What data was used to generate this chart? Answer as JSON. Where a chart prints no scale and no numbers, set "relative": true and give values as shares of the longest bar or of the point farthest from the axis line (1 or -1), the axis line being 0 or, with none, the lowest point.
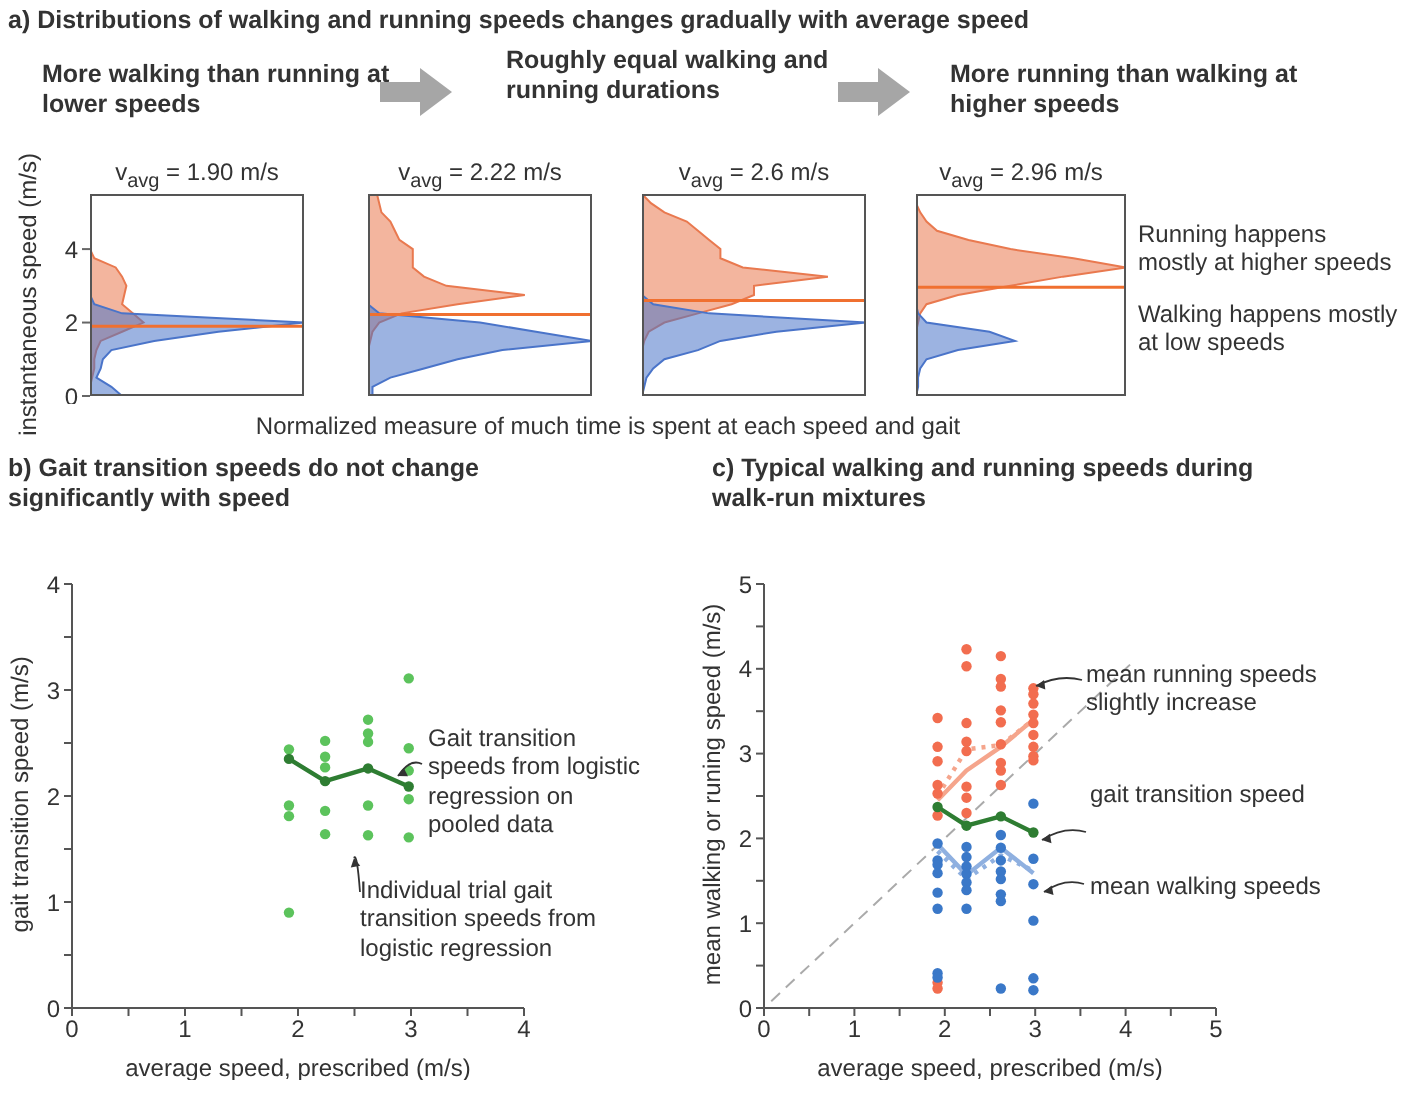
{
  "chart_data": [
    {
      "type": "area",
      "orientation": "horizontal",
      "relative": true,
      "title": "a) Distributions of walking and running speeds changes gradually with average speed",
      "subtitle": "v$_{avg}$ = 1.90 m/s",
      "xlabel": "Normalized measure of much time is spent at each speed and gait",
      "ylabel": "instantaneous speed (m/s)",
      "tick_labels": "y",
      "annotations": [
        "More walking than running at lower speeds",
        "Roughly equal walking and running durations",
        "More running than walking at higher speeds"
      ],
      "ylim": [
        0,
        5.5
      ],
      "yticks": [
        0,
        2,
        4
      ],
      "x": [
        0,
        0.25,
        0.5,
        0.75,
        1,
        1.25,
        1.5,
        1.75,
        2,
        2.25,
        2.5,
        2.75,
        3,
        3.25,
        3.5,
        3.75,
        4,
        4.25,
        4.5,
        4.75,
        5,
        5.25,
        5.5
      ],
      "series": [
        {
          "color": "#e9794f",
          "values": [
            0,
            0,
            0.01,
            0.02,
            0.02,
            0.03,
            0.05,
            0.15,
            0.25,
            0.2,
            0.15,
            0.16,
            0.17,
            0.15,
            0.12,
            0.02,
            0,
            0,
            0,
            0,
            0,
            0,
            0
          ]
        },
        {
          "color": "#4a74c9",
          "values": [
            0.15,
            0.1,
            0.03,
            0.05,
            0.06,
            0.1,
            0.3,
            0.6,
            1,
            0.15,
            0.02,
            0,
            0,
            0,
            0,
            0,
            0,
            0,
            0,
            0,
            0,
            0,
            0
          ]
        }
      ],
      "ref_lines": [
        {
          "axis": "y",
          "value": 1.9,
          "color": "#f07030"
        }
      ]
    },
    {
      "type": "area",
      "orientation": "horizontal",
      "relative": true,
      "subtitle": "v$_{avg}$ = 2.22 m/s",
      "tick_labels": false,
      "ylim": [
        0,
        5.5
      ],
      "yticks": [
        0,
        2,
        4
      ],
      "x": [
        0,
        0.25,
        0.5,
        0.75,
        1,
        1.25,
        1.5,
        1.75,
        2,
        2.25,
        2.5,
        2.75,
        3,
        3.25,
        3.5,
        3.75,
        4,
        4.25,
        4.5,
        4.75,
        5,
        5.25,
        5.5
      ],
      "series": [
        {
          "color": "#e9794f",
          "values": [
            0,
            0,
            0,
            0,
            0,
            0,
            0.01,
            0.02,
            0.05,
            0.15,
            0.4,
            0.7,
            0.35,
            0.25,
            0.2,
            0.2,
            0.2,
            0.14,
            0.12,
            0.1,
            0.06,
            0.05,
            0.04
          ]
        },
        {
          "color": "#4a74c9",
          "values": [
            0.02,
            0.02,
            0.1,
            0.25,
            0.4,
            0.6,
            1,
            0.75,
            0.5,
            0.05,
            0,
            0,
            0,
            0,
            0,
            0,
            0,
            0,
            0,
            0,
            0,
            0,
            0
          ]
        }
      ],
      "ref_lines": [
        {
          "axis": "y",
          "value": 2.22,
          "color": "#f07030"
        }
      ]
    },
    {
      "type": "area",
      "orientation": "horizontal",
      "relative": true,
      "subtitle": "v$_{avg}$ = 2.6 m/s",
      "tick_labels": false,
      "ylim": [
        0,
        5.5
      ],
      "yticks": [
        0,
        2,
        4
      ],
      "x": [
        0,
        0.25,
        0.5,
        0.75,
        1,
        1.25,
        1.5,
        1.75,
        2,
        2.25,
        2.5,
        2.75,
        3,
        3.25,
        3.5,
        3.75,
        4,
        4.25,
        4.5,
        4.75,
        5,
        5.25,
        5.5
      ],
      "series": [
        {
          "color": "#e9794f",
          "values": [
            0,
            0,
            0,
            0,
            0,
            0,
            0.01,
            0.03,
            0.1,
            0.25,
            0.4,
            0.5,
            0.5,
            0.83,
            0.45,
            0.35,
            0.35,
            0.3,
            0.25,
            0.2,
            0.1,
            0.04,
            0
          ]
        },
        {
          "color": "#4a74c9",
          "values": [
            0,
            0.01,
            0.02,
            0.05,
            0.1,
            0.25,
            0.35,
            0.6,
            1,
            0.3,
            0.05,
            0,
            0,
            0,
            0,
            0,
            0,
            0,
            0,
            0,
            0,
            0,
            0
          ]
        }
      ],
      "ref_lines": [
        {
          "axis": "y",
          "value": 2.6,
          "color": "#f07030"
        }
      ]
    },
    {
      "type": "area",
      "orientation": "horizontal",
      "relative": true,
      "subtitle": "v$_{avg}$ = 2.96 m/s",
      "tick_labels": false,
      "annotations": [
        "Running happens mostly at higher speeds",
        "Walking happens mostly at low speeds"
      ],
      "ylim": [
        0,
        5.5
      ],
      "yticks": [
        0,
        2,
        4
      ],
      "x": [
        0,
        0.25,
        0.5,
        0.75,
        1,
        1.25,
        1.5,
        1.75,
        2,
        2.25,
        2.5,
        2.75,
        3,
        3.25,
        3.5,
        3.75,
        4,
        4.25,
        4.5,
        4.75,
        5,
        5.25,
        5.5
      ],
      "series": [
        {
          "color": "#e9794f",
          "values": [
            0,
            0,
            0,
            0,
            0,
            0,
            0,
            0,
            0.01,
            0.02,
            0.05,
            0.2,
            0.45,
            0.7,
            1,
            0.75,
            0.45,
            0.25,
            0.1,
            0.05,
            0.02,
            0,
            0
          ]
        },
        {
          "color": "#4a74c9",
          "values": [
            0,
            0.01,
            0.01,
            0.02,
            0.05,
            0.2,
            0.47,
            0.35,
            0.05,
            0.01,
            0,
            0,
            0,
            0,
            0,
            0,
            0,
            0,
            0,
            0,
            0,
            0,
            0
          ]
        }
      ],
      "ref_lines": [
        {
          "axis": "y",
          "value": 2.96,
          "color": "#f07030"
        }
      ]
    },
    {
      "type": "scatter",
      "title": "b) Gait transition speeds do not change significantly with speed",
      "xlabel": "average speed, prescribed (m/s)",
      "ylabel": "gait transition speed (m/s)",
      "marker": "circle",
      "annotations": [
        "Gait transition speeds from logistic regression on pooled data",
        "Individual trial gait transition speeds from logistic regression"
      ],
      "xlim": [
        0,
        4
      ],
      "xticks": [
        0,
        {
          "value": 0.5,
          "label": null
        },
        1,
        {
          "value": 1.5,
          "label": null
        },
        2,
        {
          "value": 2.5,
          "label": null
        },
        3,
        {
          "value": 3.5,
          "label": null
        },
        4
      ],
      "ylim": [
        0,
        4
      ],
      "yticks": [
        0,
        {
          "value": 0.5,
          "label": null
        },
        1,
        {
          "value": 1.5,
          "label": null
        },
        2,
        {
          "value": 2.5,
          "label": null
        },
        3,
        {
          "value": 3.5,
          "label": null
        },
        4
      ],
      "series": [
        {
          "type": "scatter",
          "color": "#5cc35c",
          "x": [
            1.92,
            1.92,
            1.92,
            1.92,
            2.24,
            2.24,
            2.24,
            2.24,
            2.24,
            2.62,
            2.62,
            2.62,
            2.62,
            2.62,
            2.98,
            2.98,
            2.98,
            2.98,
            2.98
          ],
          "values": [
            2.44,
            1.91,
            1.81,
            0.9,
            2.52,
            2.37,
            2.27,
            1.86,
            1.64,
            2.72,
            2.59,
            2.51,
            1.91,
            1.63,
            3.11,
            2.45,
            2.24,
            1.97,
            1.61
          ]
        },
        {
          "type": "line",
          "color": "#2e7d32",
          "x": [
            1.92,
            2.24,
            2.62,
            2.98
          ],
          "values": [
            2.35,
            2.14,
            2.26,
            2.09
          ]
        }
      ]
    },
    {
      "type": "scatter",
      "title": "c) Typical walking and running speeds during walk-run mixtures",
      "xlabel": "average speed, prescribed (m/s)",
      "ylabel": "mean walking or runing speed (m/s)",
      "marker": "circle",
      "annotations": [
        "mean running speeds slightly increase",
        "gait transition speed",
        "mean walking speeds"
      ],
      "xlim": [
        0,
        5
      ],
      "xticks": [
        0,
        {
          "value": 0.5,
          "label": null
        },
        1,
        {
          "value": 1.5,
          "label": null
        },
        2,
        {
          "value": 2.5,
          "label": null
        },
        3,
        {
          "value": 3.5,
          "label": null
        },
        4,
        {
          "value": 4.5,
          "label": null
        },
        5
      ],
      "ylim": [
        0,
        5
      ],
      "yticks": [
        0,
        {
          "value": 0.5,
          "label": null
        },
        1,
        {
          "value": 1.5,
          "label": null
        },
        2,
        {
          "value": 2.5,
          "label": null
        },
        3,
        {
          "value": 3.5,
          "label": null
        },
        4,
        {
          "value": 4.5,
          "label": null
        },
        5
      ],
      "series": [
        {
          "type": "line",
          "color": "#aaaaaa",
          "line_style": "dashed",
          "marker": "none",
          "x": [
            0.08,
            4.1
          ],
          "values": [
            0.08,
            4.1
          ]
        },
        {
          "type": "scatter",
          "color": "#f26d4f",
          "x": [
            1.92,
            1.92,
            1.92,
            1.92,
            1.92,
            1.92,
            1.92,
            1.92,
            2.24,
            2.24,
            2.24,
            2.24,
            2.24,
            2.24,
            2.24,
            2.24,
            2.62,
            2.62,
            2.62,
            2.62,
            2.62,
            2.62,
            2.62,
            2.62,
            2.62,
            2.98,
            2.98,
            2.98,
            2.98,
            2.98,
            2.98,
            2.98,
            2.98,
            2.98
          ],
          "values": [
            3.42,
            3.08,
            2.91,
            2.63,
            2.53,
            2.27,
            0.3,
            0.23,
            4.23,
            4.03,
            3.36,
            3.14,
            3.03,
            2.61,
            2.48,
            2.3,
            4.15,
            3.88,
            3.79,
            3.51,
            3.37,
            3.11,
            2.89,
            2.8,
            2.63,
            3.77,
            3.7,
            3.59,
            3.46,
            3.36,
            3.22,
            3.08,
            2.97,
            2.92
          ]
        },
        {
          "type": "scatter",
          "color": "#3a78c8",
          "x": [
            1.92,
            1.92,
            1.92,
            1.92,
            1.92,
            1.92,
            1.92,
            1.92,
            2.24,
            2.24,
            2.24,
            2.24,
            2.24,
            2.24,
            2.24,
            2.62,
            2.62,
            2.62,
            2.62,
            2.62,
            2.62,
            2.62,
            2.62,
            2.98,
            2.98,
            2.98,
            2.98,
            2.98,
            2.98
          ],
          "values": [
            1.94,
            1.74,
            1.69,
            1.59,
            1.36,
            1.17,
            0.41,
            0.36,
            1.9,
            1.78,
            1.67,
            1.58,
            1.48,
            1.39,
            1.17,
            2.04,
            1.89,
            1.74,
            1.61,
            1.52,
            1.34,
            1.26,
            0.23,
            2.41,
            1.76,
            1.46,
            1.03,
            0.35,
            0.21
          ]
        },
        {
          "type": "line",
          "color": "#f5a58c",
          "marker": "none",
          "x": [
            1.92,
            2.24,
            2.62,
            2.98
          ],
          "values": [
            2.45,
            2.8,
            3.08,
            3.4
          ]
        },
        {
          "type": "line",
          "color": "#f5a58c",
          "line_style": "dotted",
          "marker": "none",
          "x": [
            1.92,
            2.24,
            2.62,
            2.98
          ],
          "values": [
            2.5,
            3.05,
            3.1,
            3.4
          ]
        },
        {
          "type": "line",
          "color": "#8fb0e0",
          "marker": "none",
          "x": [
            1.92,
            2.24,
            2.62,
            2.98
          ],
          "values": [
            1.93,
            1.57,
            1.89,
            1.59
          ]
        },
        {
          "type": "line",
          "color": "#8fb0e0",
          "line_style": "dotted",
          "marker": "none",
          "x": [
            1.92,
            2.24,
            2.62,
            2.98
          ],
          "values": [
            1.85,
            1.52,
            1.8,
            1.62
          ]
        },
        {
          "type": "line",
          "color": "#2e7d32",
          "x": [
            1.92,
            2.24,
            2.62,
            2.98
          ],
          "values": [
            2.37,
            2.15,
            2.26,
            2.07
          ]
        }
      ]
    }
  ]
}
